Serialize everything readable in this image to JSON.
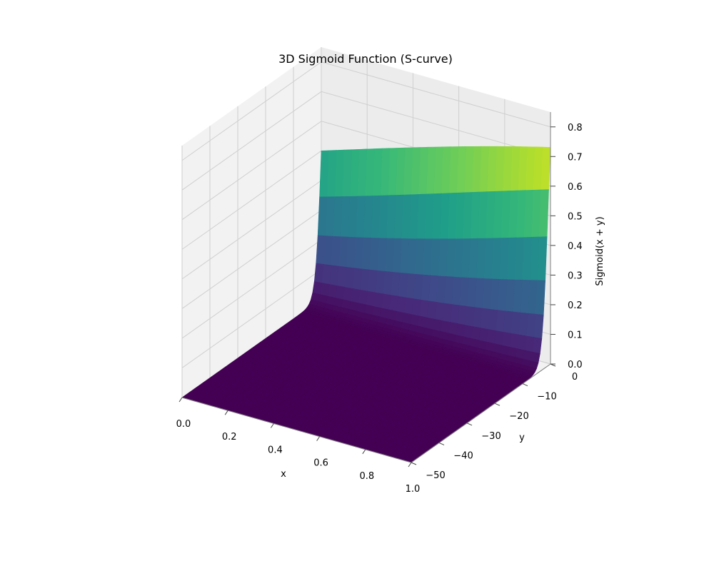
{
  "chart_data": {
    "type": "surface3d",
    "title": "3D Sigmoid Function (S-curve)",
    "xlabel": "x",
    "ylabel": "y",
    "zlabel": "Sigmoid(x + y)",
    "function": "1 / (1 + exp(-(x + y)))",
    "xlim": [
      0.0,
      1.0
    ],
    "ylim": [
      -50,
      0
    ],
    "zlim": [
      0.0,
      0.85
    ],
    "x_ticks": [
      "0.0",
      "0.2",
      "0.4",
      "0.6",
      "0.8",
      "1.0"
    ],
    "y_ticks": [
      "0",
      "−10",
      "−20",
      "−30",
      "−40",
      "−50"
    ],
    "z_ticks": [
      "0.0",
      "0.1",
      "0.2",
      "0.3",
      "0.4",
      "0.5",
      "0.6",
      "0.7",
      "0.8"
    ],
    "x_tick_values": [
      0.0,
      0.2,
      0.4,
      0.6,
      0.8,
      1.0
    ],
    "y_tick_values": [
      0,
      -10,
      -20,
      -30,
      -40,
      -50
    ],
    "z_tick_values": [
      0.0,
      0.1,
      0.2,
      0.3,
      0.4,
      0.5,
      0.6,
      0.7,
      0.8
    ],
    "corner_values": [
      {
        "x": 0.0,
        "y": 0,
        "z": 0.5
      },
      {
        "x": 1.0,
        "y": 0,
        "z": 0.73
      },
      {
        "x": 0.0,
        "y": -50,
        "z": 0.0
      },
      {
        "x": 1.0,
        "y": -50,
        "z": 0.0
      }
    ],
    "colormap": "viridis",
    "grid": true
  }
}
